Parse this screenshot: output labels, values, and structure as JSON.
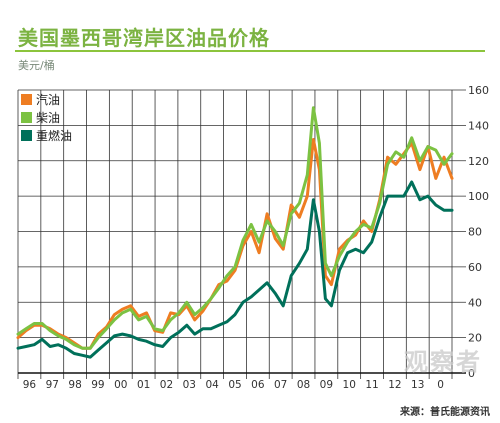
{
  "header": {
    "title": "美国墨西哥湾岸区油品价格",
    "unit": "美元/桶"
  },
  "footer": {
    "source": "来源：普氏能源资讯"
  },
  "watermark_text": "观察者",
  "colors": {
    "title": "#7cb342",
    "gasoline": "#ee7d22",
    "diesel": "#7cc242",
    "fuel_oil": "#00705a",
    "grid": "#333333"
  },
  "chart_data": {
    "type": "line",
    "title": "美国墨西哥湾岸区油品价格",
    "ylabel": "美元/桶",
    "xlabel": "",
    "ylim": [
      0,
      160
    ],
    "y_ticks": [
      "0",
      "20",
      "40",
      "60",
      "80",
      "100",
      "120",
      "140",
      "160"
    ],
    "y_axis_position": "right",
    "x_tick_labels": [
      "96",
      "97",
      "98",
      "99",
      "00",
      "01",
      "02",
      "03",
      "04",
      "05",
      "06",
      "07",
      "08",
      "09",
      "10",
      "11",
      "12",
      "13",
      "0"
    ],
    "grid": true,
    "legend_position": "top-left",
    "series": [
      {
        "name": "汽油",
        "color": "#ee7d22",
        "x": [
          1996.0,
          1996.33,
          1996.67,
          1997.0,
          1997.33,
          1997.67,
          1998.0,
          1998.33,
          1998.67,
          1999.0,
          1999.33,
          1999.67,
          2000.0,
          2000.33,
          2000.67,
          2001.0,
          2001.33,
          2001.67,
          2002.0,
          2002.33,
          2002.67,
          2003.0,
          2003.33,
          2003.67,
          2004.0,
          2004.33,
          2004.67,
          2005.0,
          2005.33,
          2005.67,
          2006.0,
          2006.33,
          2006.67,
          2007.0,
          2007.33,
          2007.67,
          2008.0,
          2008.25,
          2008.5,
          2008.75,
          2009.0,
          2009.33,
          2009.67,
          2010.0,
          2010.33,
          2010.67,
          2011.0,
          2011.33,
          2011.67,
          2012.0,
          2012.33,
          2012.67,
          2013.0,
          2013.33,
          2013.67,
          2014.0
        ],
        "values": [
          20,
          24,
          27,
          27,
          25,
          22,
          20,
          17,
          14,
          14,
          22,
          26,
          33,
          36,
          38,
          32,
          34,
          24,
          23,
          34,
          33,
          38,
          30,
          35,
          42,
          50,
          52,
          58,
          72,
          80,
          68,
          90,
          76,
          70,
          95,
          88,
          100,
          132,
          115,
          55,
          50,
          70,
          75,
          78,
          86,
          80,
          98,
          122,
          118,
          124,
          130,
          115,
          128,
          110,
          122,
          110
        ]
      },
      {
        "name": "柴油",
        "color": "#7cc242",
        "x": [
          1996.0,
          1996.33,
          1996.67,
          1997.0,
          1997.33,
          1997.67,
          1998.0,
          1998.33,
          1998.67,
          1999.0,
          1999.33,
          1999.67,
          2000.0,
          2000.33,
          2000.67,
          2001.0,
          2001.33,
          2001.67,
          2002.0,
          2002.33,
          2002.67,
          2003.0,
          2003.33,
          2003.67,
          2004.0,
          2004.33,
          2004.67,
          2005.0,
          2005.33,
          2005.67,
          2006.0,
          2006.33,
          2006.67,
          2007.0,
          2007.33,
          2007.67,
          2008.0,
          2008.25,
          2008.5,
          2008.75,
          2009.0,
          2009.33,
          2009.67,
          2010.0,
          2010.33,
          2010.67,
          2011.0,
          2011.33,
          2011.67,
          2012.0,
          2012.33,
          2012.67,
          2013.0,
          2013.33,
          2013.67,
          2014.0
        ],
        "values": [
          22,
          25,
          28,
          28,
          24,
          21,
          19,
          16,
          14,
          14,
          20,
          25,
          30,
          34,
          36,
          30,
          32,
          25,
          24,
          30,
          34,
          40,
          33,
          37,
          42,
          48,
          55,
          60,
          75,
          84,
          74,
          86,
          80,
          72,
          90,
          96,
          112,
          150,
          130,
          62,
          55,
          66,
          74,
          80,
          84,
          82,
          96,
          118,
          125,
          122,
          133,
          120,
          128,
          126,
          118,
          124
        ]
      },
      {
        "name": "重燃油",
        "color": "#00705a",
        "x": [
          1996.0,
          1996.33,
          1996.67,
          1997.0,
          1997.33,
          1997.67,
          1998.0,
          1998.33,
          1998.67,
          1999.0,
          1999.33,
          1999.67,
          2000.0,
          2000.33,
          2000.67,
          2001.0,
          2001.33,
          2001.67,
          2002.0,
          2002.33,
          2002.67,
          2003.0,
          2003.33,
          2003.67,
          2004.0,
          2004.33,
          2004.67,
          2005.0,
          2005.33,
          2005.67,
          2006.0,
          2006.33,
          2006.67,
          2007.0,
          2007.33,
          2007.67,
          2008.0,
          2008.25,
          2008.5,
          2008.75,
          2009.0,
          2009.33,
          2009.67,
          2010.0,
          2010.33,
          2010.67,
          2011.0,
          2011.33,
          2011.67,
          2012.0,
          2012.33,
          2012.67,
          2013.0,
          2013.33,
          2013.67,
          2014.0
        ],
        "values": [
          14,
          15,
          16,
          19,
          15,
          16,
          14,
          11,
          10,
          9,
          13,
          17,
          21,
          22,
          21,
          19,
          18,
          16,
          15,
          20,
          23,
          27,
          22,
          25,
          25,
          27,
          29,
          33,
          40,
          43,
          47,
          51,
          45,
          38,
          55,
          62,
          70,
          98,
          80,
          42,
          38,
          58,
          68,
          70,
          68,
          74,
          88,
          100,
          100,
          100,
          108,
          98,
          100,
          95,
          92,
          92
        ]
      }
    ]
  }
}
